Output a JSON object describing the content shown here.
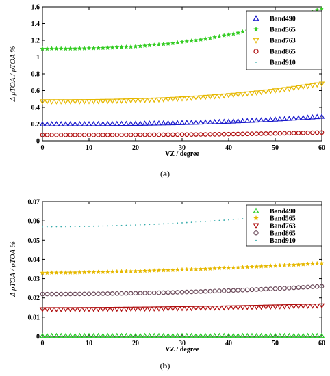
{
  "chart_data": [
    {
      "type": "scatter",
      "caption": "a",
      "xlabel": "VZ / degree",
      "ylabel": "Δ ρTOA / ρTOA %",
      "xlim": [
        0,
        60
      ],
      "ylim": [
        0,
        1.6
      ],
      "xticks": [
        0,
        10,
        20,
        30,
        40,
        50,
        60
      ],
      "yticks": [
        0,
        0.2,
        0.4,
        0.6,
        0.8,
        1.0,
        1.2,
        1.4,
        1.6
      ],
      "ytick_labels": [
        "0",
        "0.2",
        "0.4",
        "0.6",
        "0.8",
        "1",
        "1.2",
        "1.4",
        "1.6"
      ],
      "grid": false,
      "legend_position": "top-right",
      "x": {
        "start": 0,
        "end": 60,
        "step": 1
      },
      "series": [
        {
          "name": "Band490",
          "marker": "triangle-up",
          "color": "#1a1acc",
          "values_at_0": 0.2,
          "values_at_60": 0.29,
          "curve_power": 2.6
        },
        {
          "name": "Band565",
          "marker": "star",
          "color": "#33cc22",
          "values_at_0": 1.1,
          "values_at_60": 1.58,
          "curve_power": 2.6
        },
        {
          "name": "Band763",
          "marker": "triangle-down",
          "color": "#e6b800",
          "values_at_0": 0.47,
          "values_at_60": 0.68,
          "curve_power": 2.6
        },
        {
          "name": "Band865",
          "marker": "circle",
          "color": "#b01010",
          "values_at_0": 0.07,
          "values_at_60": 0.1,
          "curve_power": 2.6
        },
        {
          "name": "Band910",
          "marker": "dot",
          "color": "#33aaaa",
          "values_at_0": null,
          "values_at_60": null
        }
      ]
    },
    {
      "type": "scatter",
      "caption": "b",
      "xlabel": "VZ / degree",
      "ylabel": "Δ ρTOA / ρTOA %",
      "xlim": [
        0,
        60
      ],
      "ylim": [
        0,
        0.07
      ],
      "xticks": [
        0,
        10,
        20,
        30,
        40,
        50,
        60
      ],
      "yticks": [
        0,
        0.01,
        0.02,
        0.03,
        0.04,
        0.05,
        0.06,
        0.07
      ],
      "ytick_labels": [
        "0",
        "0.01",
        "0.02",
        "0.03",
        "0.04",
        "0.05",
        "0.06",
        "0.07"
      ],
      "grid": false,
      "legend_position": "top-right",
      "x": {
        "start": 0,
        "end": 60,
        "step": 1
      },
      "series": [
        {
          "name": "Band490",
          "marker": "triangle-up",
          "color": "#22cc22",
          "values_at_0": 0.0003,
          "values_at_60": 0.0003,
          "curve_power": 2
        },
        {
          "name": "Band565",
          "marker": "star",
          "color": "#e6b800",
          "values_at_0": 0.033,
          "values_at_60": 0.038,
          "curve_power": 1.6
        },
        {
          "name": "Band763",
          "marker": "triangle-down",
          "color": "#b01010",
          "values_at_0": 0.014,
          "values_at_60": 0.016,
          "curve_power": 1.8
        },
        {
          "name": "Band865",
          "marker": "circle",
          "color": "#6b4a5a",
          "values_at_0": 0.022,
          "values_at_60": 0.026,
          "curve_power": 2
        },
        {
          "name": "Band910",
          "marker": "dot",
          "color": "#33aaaa",
          "values_at_0": 0.057,
          "values_at_60": 0.065,
          "curve_power": 2
        }
      ]
    }
  ]
}
